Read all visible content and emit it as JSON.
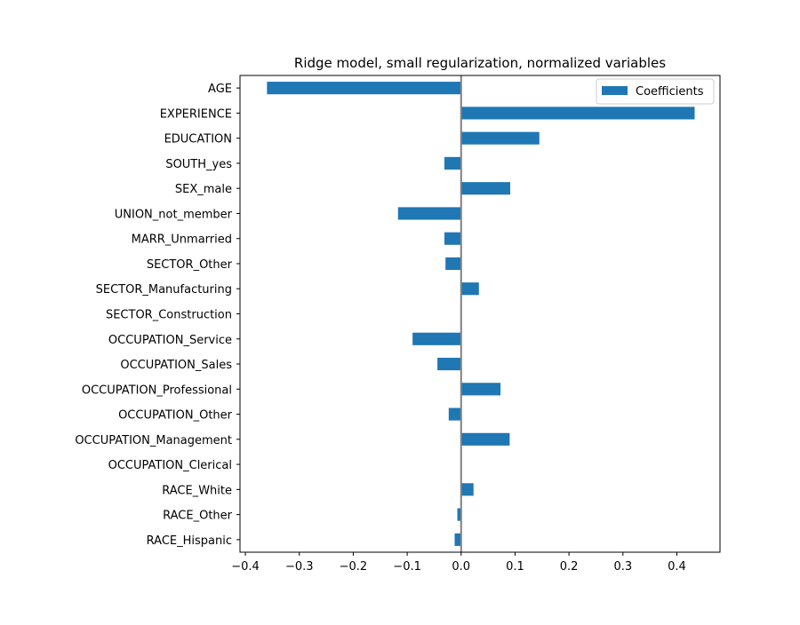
{
  "chart_data": {
    "type": "bar",
    "orientation": "horizontal",
    "title": "Ridge model, small regularization, normalized variables",
    "xlabel": "",
    "ylabel": "",
    "xlim": [
      -0.41,
      0.48
    ],
    "xticks": [
      -0.4,
      -0.3,
      -0.2,
      -0.1,
      0.0,
      0.1,
      0.2,
      0.3,
      0.4
    ],
    "xtick_labels": [
      "−0.4",
      "−0.3",
      "−0.2",
      "−0.1",
      "0.0",
      "0.1",
      "0.2",
      "0.3",
      "0.4"
    ],
    "grid": false,
    "legend_position": "top-right",
    "zero_line": true,
    "zero_line_color": "#808080",
    "bar_color": "#1f77b4",
    "categories": [
      "AGE",
      "EXPERIENCE",
      "EDUCATION",
      "SOUTH_yes",
      "SEX_male",
      "UNION_not_member",
      "MARR_Unmarried",
      "SECTOR_Other",
      "SECTOR_Manufacturing",
      "SECTOR_Construction",
      "OCCUPATION_Service",
      "OCCUPATION_Sales",
      "OCCUPATION_Professional",
      "OCCUPATION_Other",
      "OCCUPATION_Management",
      "OCCUPATION_Clerical",
      "RACE_White",
      "RACE_Other",
      "RACE_Hispanic"
    ],
    "series": [
      {
        "name": "Coefficients",
        "values": [
          -0.36,
          0.433,
          0.145,
          -0.031,
          0.091,
          -0.117,
          -0.031,
          -0.029,
          0.033,
          0.0,
          -0.09,
          -0.044,
          0.073,
          -0.023,
          0.09,
          0.0,
          0.023,
          -0.007,
          -0.012
        ]
      }
    ]
  }
}
